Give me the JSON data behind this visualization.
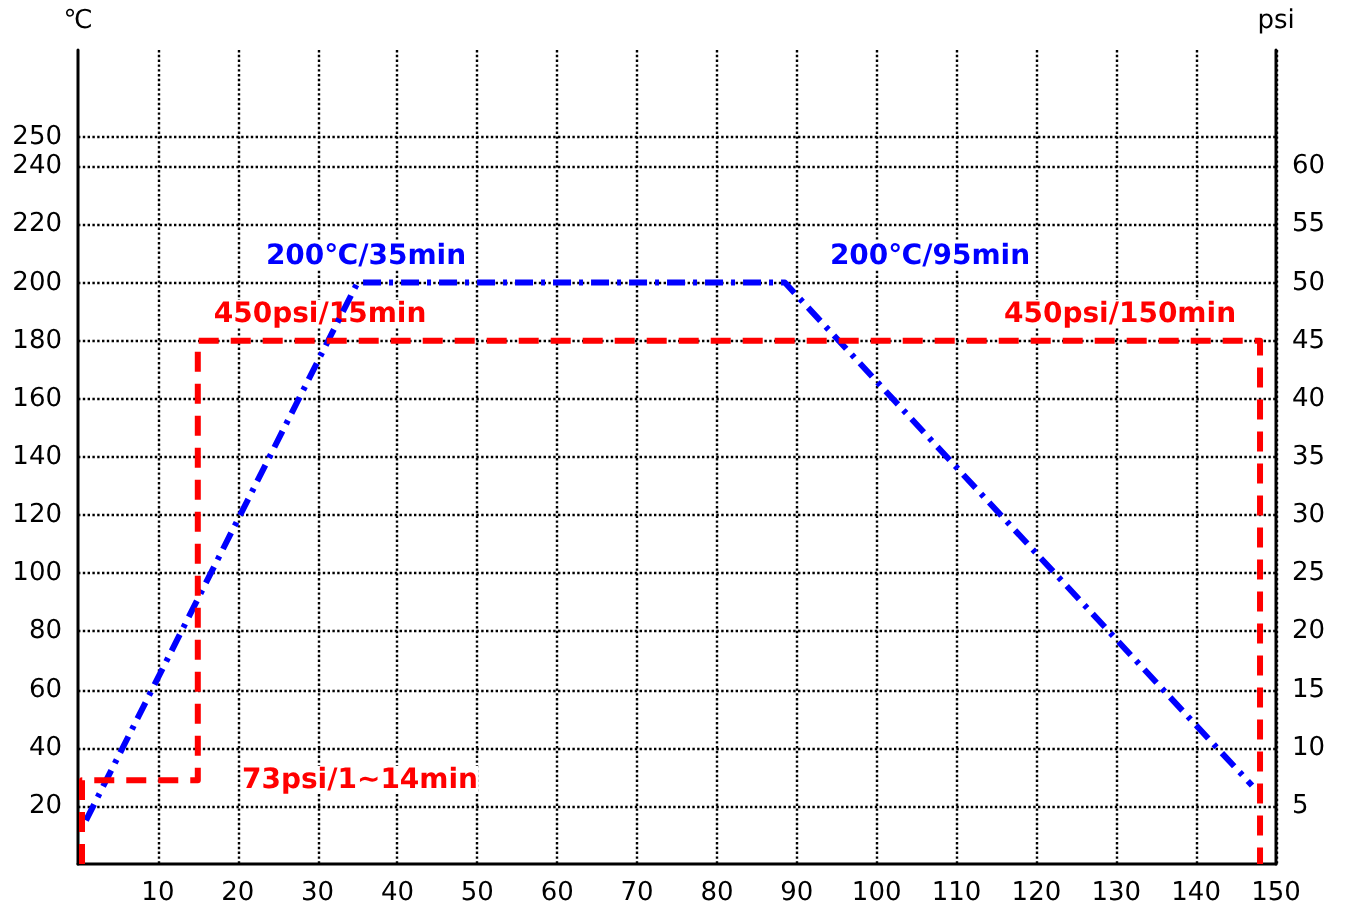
{
  "chart_data": {
    "type": "line",
    "ylabel": "℃",
    "y2label": "psi",
    "xlim": [
      0,
      150
    ],
    "xticks": [
      10,
      20,
      30,
      40,
      50,
      60,
      70,
      80,
      90,
      100,
      110,
      120,
      130,
      140,
      150
    ],
    "ylim": [
      0,
      280
    ],
    "yticks": [
      20,
      40,
      60,
      80,
      100,
      120,
      140,
      160,
      180,
      200,
      220,
      240,
      250
    ],
    "y2lim": [
      0,
      70
    ],
    "y2ticks": [
      5,
      10,
      15,
      20,
      25,
      30,
      35,
      40,
      45,
      50,
      55,
      60
    ],
    "series": [
      {
        "color": "#0000ff",
        "line_style": "dashdot",
        "x": [
          1,
          35,
          88.5,
          147
        ],
        "values": [
          15,
          200,
          200,
          27
        ]
      },
      {
        "color": "#ff0000",
        "line_style": "dashed",
        "axis": "y2",
        "x": [
          0.5,
          0.5,
          15,
          15,
          148,
          148
        ],
        "values": [
          0,
          7.2,
          7.2,
          45,
          45,
          0
        ]
      }
    ],
    "annotations": [
      "200℃/35min",
      "200℃/95min",
      "450psi/15min",
      "450psi/150min",
      "73psi/1~14min"
    ],
    "grid": true,
    "marker": "none"
  }
}
